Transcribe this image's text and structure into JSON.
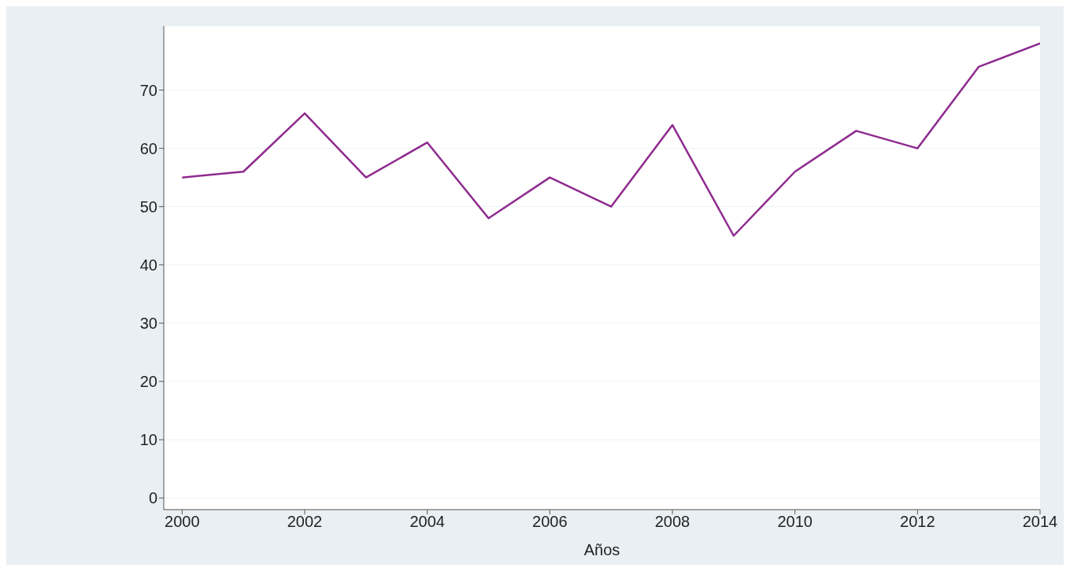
{
  "chart_data": {
    "type": "line",
    "xlabel": "Años",
    "x": [
      2000,
      2001,
      2002,
      2003,
      2004,
      2005,
      2006,
      2007,
      2008,
      2009,
      2010,
      2011,
      2012,
      2013,
      2014
    ],
    "series": [
      {
        "color": "#8e2a8e",
        "values": [
          55,
          56,
          66,
          55,
          61,
          48,
          55,
          50,
          64,
          45,
          56,
          63,
          60,
          74,
          78
        ]
      }
    ],
    "xlim": [
      1999.7,
      2014
    ],
    "xticks": [
      2000,
      2002,
      2004,
      2006,
      2008,
      2010,
      2012,
      2014
    ],
    "ylim": [
      -2,
      81
    ],
    "yticks": [
      0,
      10,
      20,
      30,
      40,
      50,
      60,
      70
    ],
    "grid": "y",
    "legend": false,
    "marker": "none",
    "line_style": "solid"
  }
}
